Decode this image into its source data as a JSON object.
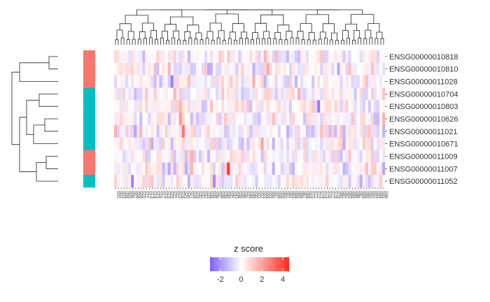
{
  "chart_data": {
    "type": "heatmap",
    "title": "",
    "rows": [
      "ENSG00000010818",
      "ENSG00000010810",
      "ENSG00000011028",
      "ENSG00000010704",
      "ENSG00000010803",
      "ENSG00000010626",
      "ENSG00000011021",
      "ENSG00000010671",
      "ENSG00000011009",
      "ENSG00000011007",
      "ENSG00000011052"
    ],
    "row_groups": [
      "A",
      "A",
      "A",
      "B",
      "B",
      "B",
      "B",
      "B",
      "A",
      "A",
      "B"
    ],
    "group_colors": {
      "A": "#f8766d",
      "B": "#00bfc4"
    },
    "n_columns": 96,
    "column_labels": [
      "S01",
      "S02",
      "S03",
      "S04",
      "S05",
      "S06",
      "S07",
      "S08",
      "S09",
      "S10",
      "S11",
      "S12",
      "S13",
      "S14",
      "S15",
      "S16",
      "S17",
      "S18",
      "S19",
      "S20",
      "S21",
      "S22",
      "S23",
      "S24",
      "S25",
      "S26",
      "S27",
      "S28",
      "S29",
      "S30",
      "S31",
      "S32",
      "S33",
      "S34",
      "S35",
      "S36",
      "S37",
      "S38",
      "S39",
      "S40",
      "S41",
      "S42",
      "S43",
      "S44",
      "S45",
      "S46",
      "S47",
      "S48",
      "S49",
      "S50",
      "S51",
      "S52",
      "S53",
      "S54",
      "S55",
      "S56",
      "S57",
      "S58",
      "S59",
      "S60",
      "S61",
      "S62",
      "S63",
      "S64",
      "S65",
      "S66",
      "S67",
      "S68",
      "S69",
      "S70",
      "S71",
      "S72",
      "S73",
      "S74",
      "S75",
      "S76",
      "S77",
      "S78",
      "S79",
      "S80",
      "S81",
      "S82",
      "S83",
      "S84",
      "S85",
      "S86",
      "S87",
      "S88",
      "S89",
      "S90",
      "S91",
      "S92",
      "S93",
      "S94",
      "S95",
      "S96"
    ],
    "values_note": "approximate z scores per cell",
    "highlights": [
      {
        "row": 9,
        "col": 40,
        "value": 4.3
      },
      {
        "row": 6,
        "col": 24,
        "value": 3.0
      },
      {
        "row": 5,
        "col": 23,
        "value": 2.2
      },
      {
        "row": 7,
        "col": 52,
        "value": 2.0
      },
      {
        "row": 2,
        "col": 20,
        "value": -2.4
      },
      {
        "row": 4,
        "col": 72,
        "value": -2.5
      },
      {
        "row": 10,
        "col": 6,
        "value": -2.3
      }
    ],
    "color_scale": {
      "low": "#7f5fff",
      "mid": "#ffffff",
      "high": "#ff2a1a",
      "min": -3,
      "max": 4.6
    },
    "legend": {
      "title": "z score",
      "ticks": [
        -2,
        0,
        2,
        4
      ],
      "position": "bottom"
    },
    "row_dendrogram": true,
    "column_dendrogram": true
  }
}
